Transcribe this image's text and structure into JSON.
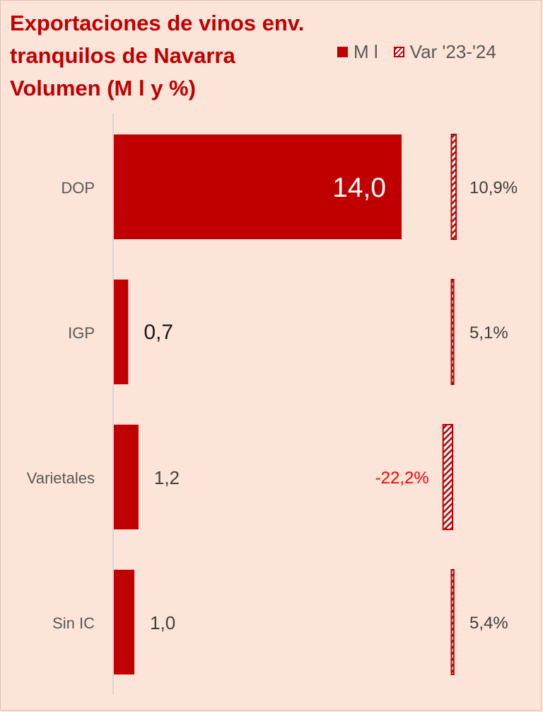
{
  "chart_data": {
    "type": "bar",
    "title": {
      "line1_normal": "Exportaciones de ",
      "line1_bold": "vinos env.",
      "line2_bold": "tranquilos",
      "line2_normal": " de Navarra",
      "line3": "Volumen (M l y %)"
    },
    "categories": [
      "DOP",
      "IGP",
      "Varietales",
      "Sin IC"
    ],
    "series": [
      {
        "name": "M l",
        "values": [
          14.0,
          0.7,
          1.2,
          1.0
        ],
        "labels": [
          "14,0",
          "0,7",
          "1,2",
          "1,0"
        ],
        "color": "#c00000"
      },
      {
        "name": "Var '23-'24",
        "values": [
          10.9,
          5.1,
          -22.2,
          5.4
        ],
        "labels": [
          "10,9%",
          "5,1%",
          "-22,2%",
          "5,4%"
        ],
        "color": "#c00000",
        "pattern": "hatched"
      }
    ],
    "legend_position": "top-right",
    "label_colors": {
      "positive": "#404040",
      "negative": "#ff0000",
      "inside": "#ffffff"
    },
    "gridlines": false
  }
}
